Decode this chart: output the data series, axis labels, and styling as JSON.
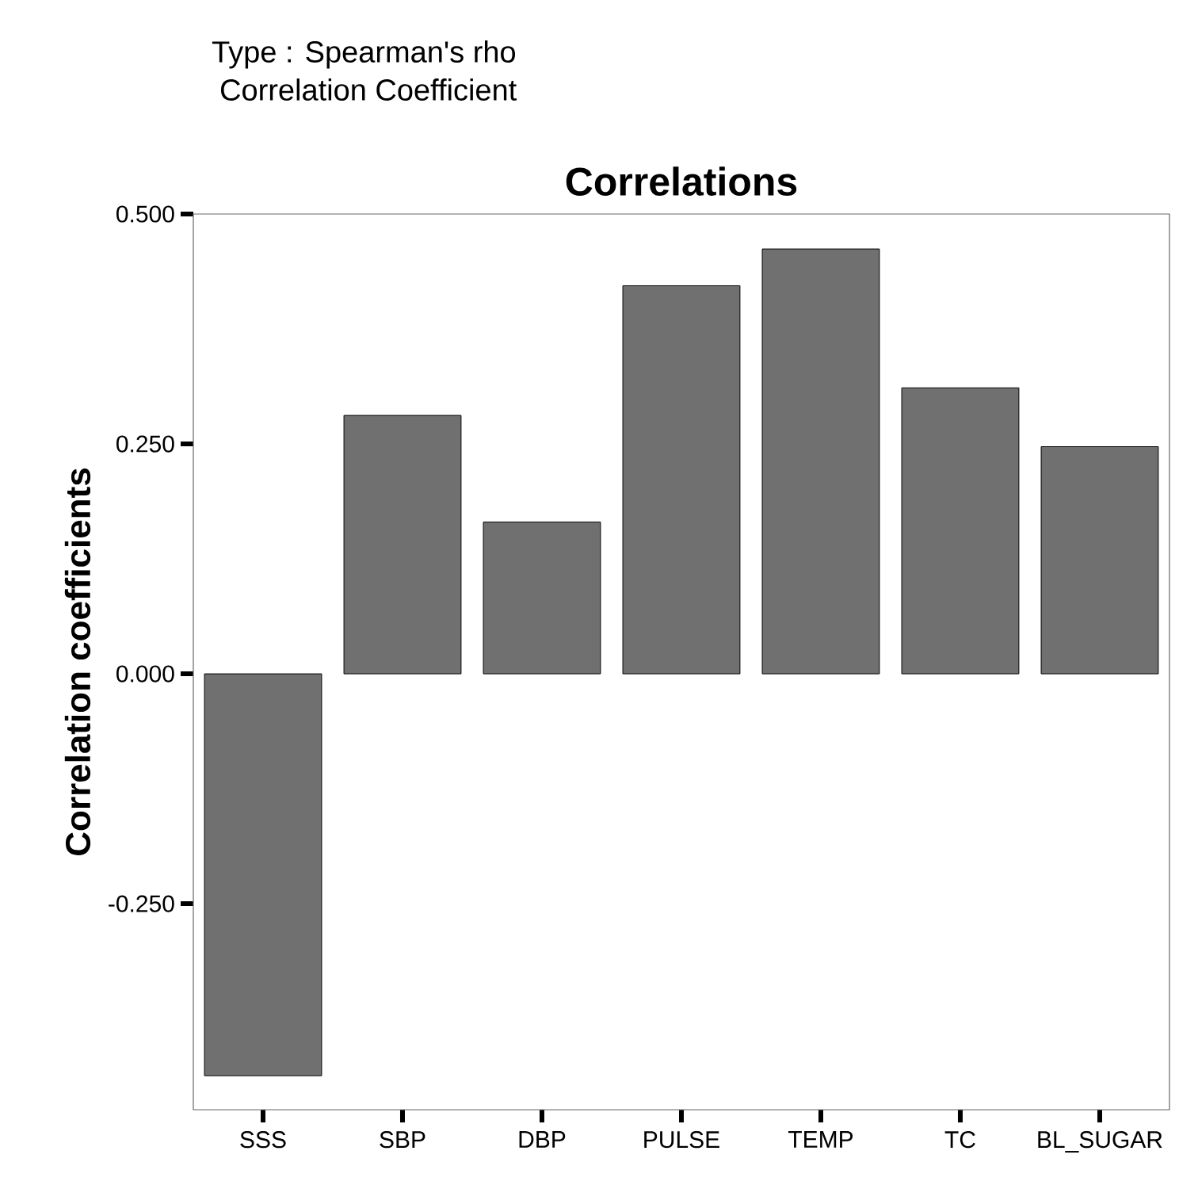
{
  "chart_data": {
    "type": "bar",
    "title": "Correlations",
    "annotations": [
      "Type : Spearman's rho",
      "Correlation Coefficient"
    ],
    "ylabel": "Correlation coefficients",
    "categories": [
      "SSS",
      "SBP",
      "DBP",
      "PULSE",
      "TEMP",
      "TC",
      "BL_SUGAR"
    ],
    "values": [
      -0.437,
      0.281,
      0.165,
      0.422,
      0.462,
      0.311,
      0.247
    ],
    "color": "#707070",
    "ylim": [
      -0.474,
      0.5
    ],
    "yticks": [
      {
        "value": -0.25,
        "label": "-0.250"
      },
      {
        "value": 0,
        "label": "0.000"
      },
      {
        "value": 0.25,
        "label": "0.250"
      },
      {
        "value": 0.5,
        "label": "0.500"
      }
    ],
    "grid": false
  }
}
